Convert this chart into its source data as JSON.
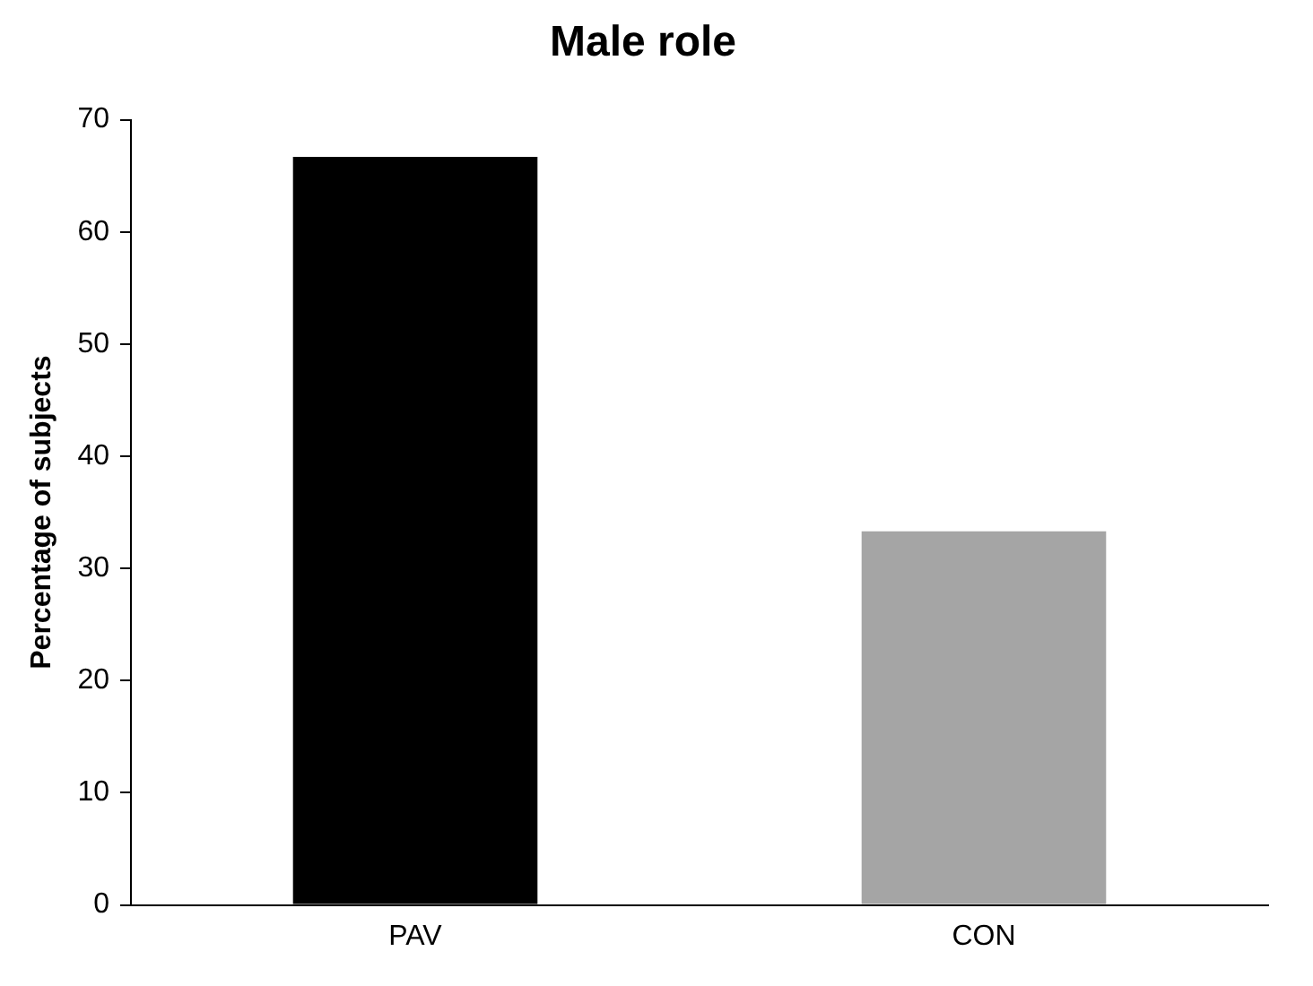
{
  "chart_data": {
    "type": "bar",
    "title": "Male role",
    "ylabel": "Percentage of subjects",
    "categories": [
      "PAV",
      "CON"
    ],
    "values": [
      66.7,
      33.3
    ],
    "colors": [
      "#000000",
      "#a5a5a5"
    ],
    "ylim": [
      0,
      70
    ],
    "yticks": [
      0,
      10,
      20,
      30,
      40,
      50,
      60,
      70
    ],
    "grid": false,
    "legend": false
  }
}
